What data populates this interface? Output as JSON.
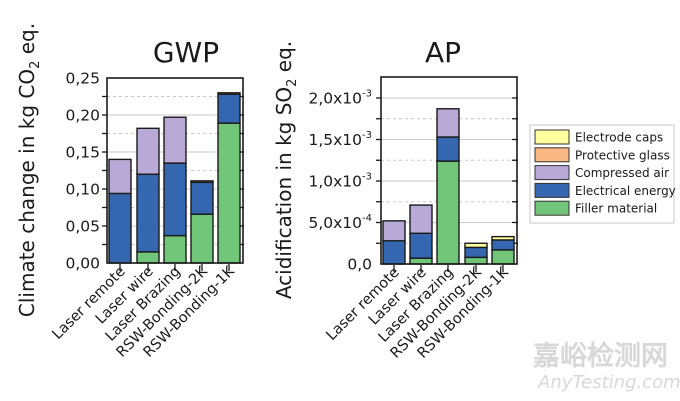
{
  "chart_data": [
    {
      "type": "bar",
      "stacked": true,
      "title": "GWP",
      "ylabel": "Climate change in kg CO2 eq.",
      "ylabel_parts": [
        "Climate change in kg CO",
        "2",
        " eq."
      ],
      "xlabel": "",
      "ylim": [
        0,
        0.25
      ],
      "yticks": [
        0,
        0.05,
        0.1,
        0.15,
        0.2,
        0.25
      ],
      "ytick_labels": [
        "0,00",
        "0,05",
        "0,10",
        "0,15",
        "0,20",
        "0,25"
      ],
      "grid": true,
      "categories": [
        "Laser remote",
        "Laser wire",
        "Laser Brazing",
        "RSW-Bonding-2K",
        "RSW-Bonding-1K"
      ],
      "series": [
        {
          "name": "Filler material",
          "values": [
            0.0,
            0.015,
            0.037,
            0.066,
            0.189
          ]
        },
        {
          "name": "Electrical energy",
          "values": [
            0.094,
            0.105,
            0.098,
            0.043,
            0.039
          ]
        },
        {
          "name": "Compressed air",
          "values": [
            0.046,
            0.062,
            0.062,
            0.0,
            0.0
          ]
        },
        {
          "name": "Protective glass",
          "values": [
            0.0,
            0.0,
            0.0,
            0.0,
            0.0
          ]
        },
        {
          "name": "Electrode caps",
          "values": [
            0.0,
            0.0,
            0.0,
            0.002,
            0.002
          ]
        }
      ]
    },
    {
      "type": "bar",
      "stacked": true,
      "title": "AP",
      "ylabel": "Acidification in kg SO2 eq.",
      "ylabel_parts": [
        "Acidification in kg SO",
        "2",
        " eq."
      ],
      "xlabel": "",
      "ylim": [
        0,
        0.0023
      ],
      "yticks": [
        0,
        0.0005,
        0.001,
        0.0015,
        0.002
      ],
      "ytick_labels": [
        {
          "base": "0,0",
          "exp": ""
        },
        {
          "base": "5,0x10",
          "exp": "-4"
        },
        {
          "base": "1,0x10",
          "exp": "-3"
        },
        {
          "base": "1,5x10",
          "exp": "-3"
        },
        {
          "base": "2,0x10",
          "exp": "-3"
        }
      ],
      "grid": true,
      "categories": [
        "Laser remote",
        "Laser wire",
        "Laser Brazing",
        "RSW-Bonding-2K",
        "RSW-Bonding-1K"
      ],
      "series": [
        {
          "name": "Filler material",
          "values": [
            0.0,
            7e-05,
            0.00124,
            8e-05,
            0.00017
          ]
        },
        {
          "name": "Electrical energy",
          "values": [
            0.00028,
            0.0003,
            0.00029,
            0.00012,
            0.00012
          ]
        },
        {
          "name": "Compressed air",
          "values": [
            0.00024,
            0.00034,
            0.00034,
            0.0,
            0.0
          ]
        },
        {
          "name": "Protective glass",
          "values": [
            0.0,
            0.0,
            0.0,
            0.0,
            0.0
          ]
        },
        {
          "name": "Electrode caps",
          "values": [
            0.0,
            0.0,
            0.0,
            5e-05,
            4e-05
          ]
        }
      ]
    }
  ],
  "legend": {
    "placement": "right",
    "items": [
      {
        "name": "Electrode caps",
        "color": "#ffff9e"
      },
      {
        "name": "Protective glass",
        "color": "#f9b884"
      },
      {
        "name": "Compressed air",
        "color": "#b9a9d6"
      },
      {
        "name": "Electrical energy",
        "color": "#3566b0"
      },
      {
        "name": "Filler material",
        "color": "#72c67a"
      }
    ]
  },
  "colors": {
    "Filler material": "#72c67a",
    "Electrical energy": "#3566b0",
    "Compressed air": "#b9a9d6",
    "Protective glass": "#f9b884",
    "Electrode caps": "#ffff9e",
    "outline": "#1a1a1a",
    "grid": "#c8c8c8"
  },
  "watermark": {
    "cn": "嘉峪检测网",
    "en": "AnyTesting.com"
  }
}
